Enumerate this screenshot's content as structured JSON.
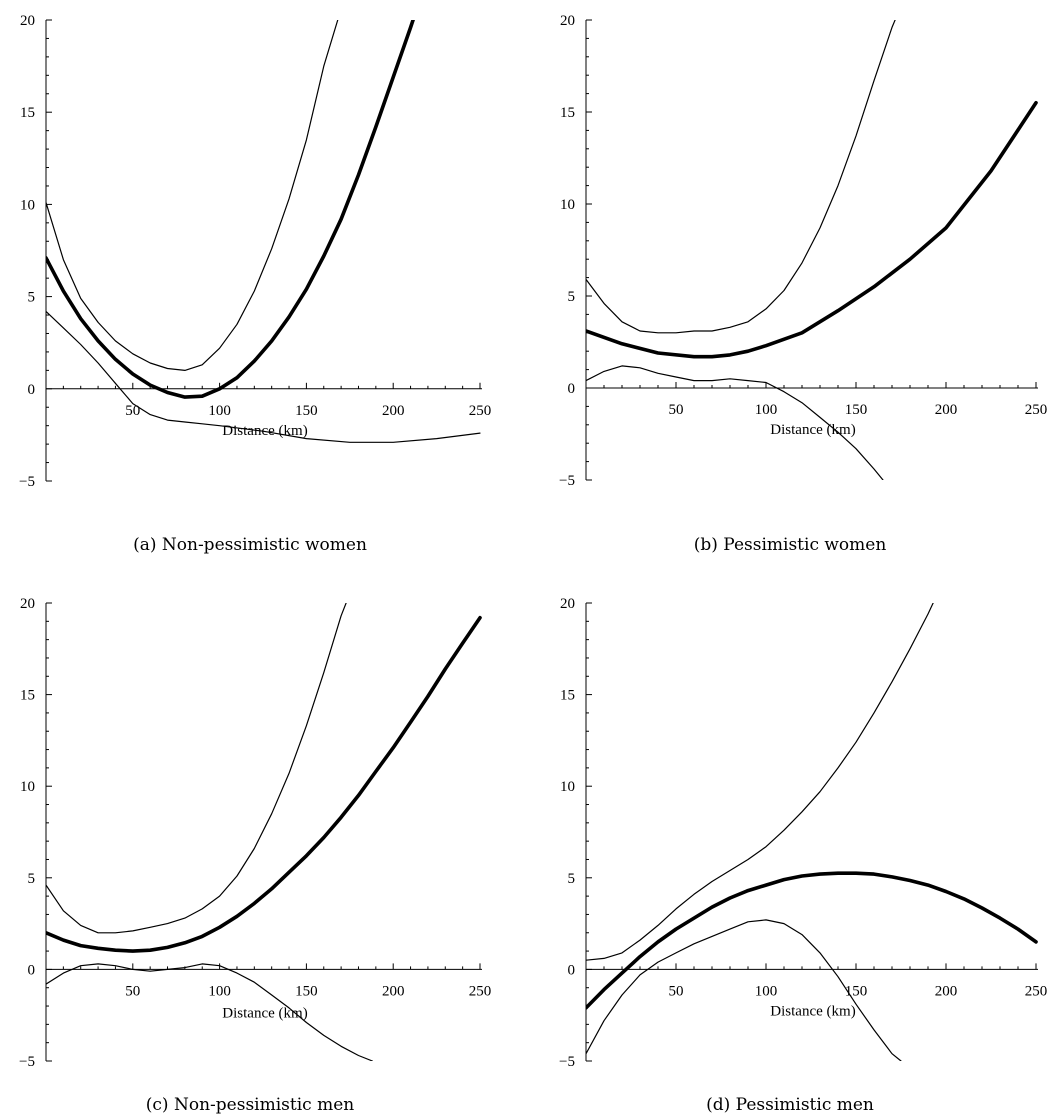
{
  "chart_data": [
    {
      "type": "line",
      "caption": "(a) Non-pessimistic women",
      "xlabel": "Distance (km)",
      "ylabel": "",
      "xlim": [
        0,
        250
      ],
      "ylim": [
        -5,
        20
      ],
      "xticks": [
        50,
        100,
        150,
        200,
        250
      ],
      "yticks": [
        -5,
        0,
        5,
        10,
        15,
        20
      ],
      "series": [
        {
          "style": "thick",
          "x": [
            0,
            10,
            20,
            30,
            40,
            50,
            60,
            70,
            80,
            90,
            100,
            110,
            120,
            130,
            140,
            150,
            160,
            170,
            180,
            190,
            200,
            210,
            215
          ],
          "y": [
            7.1,
            5.3,
            3.8,
            2.6,
            1.6,
            0.8,
            0.2,
            -0.2,
            -0.45,
            -0.4,
            0.0,
            0.6,
            1.5,
            2.6,
            3.9,
            5.4,
            7.2,
            9.2,
            11.6,
            14.2,
            16.9,
            19.6,
            21
          ]
        },
        {
          "style": "thin",
          "x": [
            0,
            10,
            20,
            30,
            40,
            50,
            60,
            70,
            80,
            90,
            100,
            110,
            120,
            130,
            140,
            150,
            160,
            170
          ],
          "y": [
            10.1,
            7.0,
            4.9,
            3.6,
            2.6,
            1.9,
            1.4,
            1.1,
            1.0,
            1.3,
            2.2,
            3.5,
            5.3,
            7.6,
            10.3,
            13.5,
            17.5,
            20.6
          ]
        },
        {
          "style": "thin",
          "x": [
            0,
            10,
            20,
            30,
            40,
            50,
            60,
            70,
            80,
            90,
            100,
            125,
            150,
            175,
            200,
            225,
            250
          ],
          "y": [
            4.2,
            3.3,
            2.4,
            1.4,
            0.3,
            -0.8,
            -1.4,
            -1.7,
            -1.8,
            -1.9,
            -2.0,
            -2.3,
            -2.7,
            -2.9,
            -2.9,
            -2.7,
            -2.4
          ]
        }
      ]
    },
    {
      "type": "line",
      "caption": "(b) Pessimistic women",
      "xlabel": "Distance (km)",
      "ylabel": "",
      "xlim": [
        0,
        250
      ],
      "ylim": [
        -5,
        20
      ],
      "xticks": [
        50,
        100,
        150,
        200,
        250
      ],
      "yticks": [
        -5,
        0,
        5,
        10,
        15,
        20
      ],
      "series": [
        {
          "style": "thick",
          "x": [
            0,
            20,
            40,
            60,
            70,
            80,
            90,
            100,
            120,
            140,
            160,
            180,
            200,
            225,
            250
          ],
          "y": [
            3.1,
            2.4,
            1.9,
            1.7,
            1.7,
            1.8,
            2.0,
            2.3,
            3.0,
            4.2,
            5.5,
            7.0,
            8.7,
            11.8,
            15.5
          ]
        },
        {
          "style": "thin",
          "x": [
            0,
            10,
            20,
            30,
            40,
            50,
            60,
            70,
            80,
            90,
            100,
            110,
            120,
            130,
            140,
            150,
            160,
            170,
            176
          ],
          "y": [
            5.9,
            4.6,
            3.6,
            3.1,
            3.0,
            3.0,
            3.1,
            3.1,
            3.3,
            3.6,
            4.3,
            5.3,
            6.8,
            8.7,
            11.0,
            13.7,
            16.7,
            19.6,
            21
          ]
        },
        {
          "style": "thin",
          "x": [
            0,
            10,
            20,
            30,
            40,
            50,
            60,
            70,
            80,
            90,
            100,
            110,
            120,
            130,
            140,
            150,
            160,
            165
          ],
          "y": [
            0.4,
            0.9,
            1.2,
            1.1,
            0.8,
            0.6,
            0.4,
            0.4,
            0.5,
            0.4,
            0.3,
            -0.2,
            -0.8,
            -1.6,
            -2.4,
            -3.3,
            -4.4,
            -5.0
          ]
        }
      ]
    },
    {
      "type": "line",
      "caption": "(c) Non-pessimistic men",
      "xlabel": "Distance (km)",
      "ylabel": "",
      "xlim": [
        0,
        250
      ],
      "ylim": [
        -5,
        20
      ],
      "xticks": [
        50,
        100,
        150,
        200,
        250
      ],
      "yticks": [
        -5,
        0,
        5,
        10,
        15,
        20
      ],
      "series": [
        {
          "style": "thick",
          "x": [
            0,
            10,
            20,
            30,
            40,
            50,
            60,
            70,
            80,
            90,
            100,
            110,
            120,
            130,
            140,
            150,
            160,
            170,
            180,
            190,
            200,
            210,
            220,
            230,
            240,
            250
          ],
          "y": [
            2.0,
            1.6,
            1.3,
            1.15,
            1.05,
            1.0,
            1.05,
            1.2,
            1.45,
            1.8,
            2.3,
            2.9,
            3.6,
            4.4,
            5.3,
            6.2,
            7.2,
            8.3,
            9.5,
            10.8,
            12.1,
            13.5,
            14.9,
            16.4,
            17.8,
            19.2
          ]
        },
        {
          "style": "thin",
          "x": [
            0,
            10,
            20,
            30,
            40,
            50,
            60,
            70,
            80,
            90,
            100,
            110,
            120,
            130,
            140,
            150,
            160,
            170,
            177
          ],
          "y": [
            4.6,
            3.2,
            2.4,
            2.0,
            2.0,
            2.1,
            2.3,
            2.5,
            2.8,
            3.3,
            4.0,
            5.1,
            6.6,
            8.5,
            10.7,
            13.3,
            16.2,
            19.3,
            21
          ]
        },
        {
          "style": "thin",
          "x": [
            0,
            10,
            20,
            30,
            40,
            50,
            60,
            70,
            80,
            90,
            100,
            110,
            120,
            130,
            140,
            150,
            160,
            170,
            180,
            188
          ],
          "y": [
            -0.8,
            -0.2,
            0.2,
            0.3,
            0.2,
            0.0,
            -0.1,
            0.0,
            0.1,
            0.3,
            0.2,
            -0.2,
            -0.7,
            -1.4,
            -2.1,
            -2.9,
            -3.6,
            -4.2,
            -4.7,
            -5.0
          ]
        }
      ]
    },
    {
      "type": "line",
      "caption": "(d) Pessimistic men",
      "xlabel": "Distance (km)",
      "ylabel": "",
      "xlim": [
        0,
        250
      ],
      "ylim": [
        -5,
        20
      ],
      "xticks": [
        50,
        100,
        150,
        200,
        250
      ],
      "yticks": [
        -5,
        0,
        5,
        10,
        15,
        20
      ],
      "series": [
        {
          "style": "thick",
          "x": [
            0,
            10,
            20,
            30,
            40,
            50,
            60,
            70,
            80,
            90,
            100,
            110,
            120,
            130,
            140,
            150,
            160,
            170,
            180,
            190,
            200,
            210,
            220,
            230,
            240,
            250
          ],
          "y": [
            -2.1,
            -1.1,
            -0.2,
            0.7,
            1.5,
            2.2,
            2.8,
            3.4,
            3.9,
            4.3,
            4.6,
            4.9,
            5.1,
            5.2,
            5.25,
            5.25,
            5.2,
            5.05,
            4.85,
            4.6,
            4.25,
            3.85,
            3.35,
            2.8,
            2.2,
            1.5
          ]
        },
        {
          "style": "thin",
          "x": [
            0,
            10,
            20,
            30,
            40,
            50,
            60,
            70,
            80,
            90,
            100,
            110,
            120,
            130,
            140,
            150,
            160,
            170,
            180,
            190,
            200,
            205
          ],
          "y": [
            0.5,
            0.6,
            0.9,
            1.6,
            2.4,
            3.3,
            4.1,
            4.8,
            5.4,
            6.0,
            6.7,
            7.6,
            8.6,
            9.7,
            11.0,
            12.4,
            14.0,
            15.7,
            17.5,
            19.4,
            21.5,
            22.5
          ]
        },
        {
          "style": "thin",
          "x": [
            0,
            10,
            20,
            30,
            40,
            50,
            60,
            70,
            80,
            90,
            100,
            110,
            120,
            130,
            140,
            150,
            160,
            170,
            175
          ],
          "y": [
            -4.6,
            -2.8,
            -1.4,
            -0.3,
            0.4,
            0.9,
            1.4,
            1.8,
            2.2,
            2.6,
            2.7,
            2.5,
            1.9,
            0.9,
            -0.4,
            -1.9,
            -3.3,
            -4.6,
            -5.0
          ]
        }
      ]
    }
  ]
}
